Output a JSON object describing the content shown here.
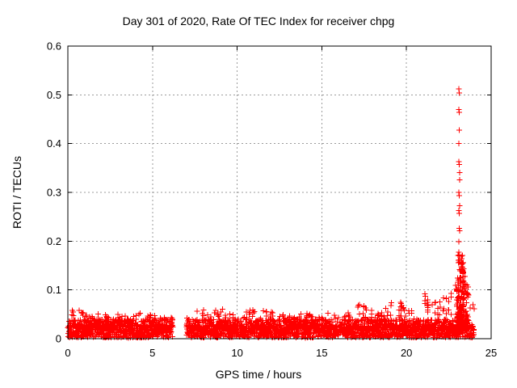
{
  "chart_data": {
    "type": "scatter",
    "title": "Day 301 of 2020, Rate Of TEC Index for receiver chpg",
    "xlabel": "GPS time / hours",
    "ylabel": "ROTI / TECUs",
    "xlim": [
      0,
      25
    ],
    "ylim": [
      0,
      0.6
    ],
    "x_ticks": [
      "0",
      "5",
      "10",
      "15",
      "20",
      "25"
    ],
    "x_tick_values": [
      0,
      5,
      10,
      15,
      20,
      25
    ],
    "y_ticks": [
      "0",
      "0.1",
      "0.2",
      "0.3",
      "0.4",
      "0.5",
      "0.6"
    ],
    "y_tick_values": [
      0,
      0.1,
      0.2,
      0.3,
      0.4,
      0.5,
      0.6
    ],
    "grid": {
      "visible": true,
      "style": "dashed",
      "color": "#9b9b9b"
    },
    "legend": "none",
    "marker": "plus",
    "marker_color": "#ff0000",
    "frame_color": "#000000",
    "background": "#ffffff",
    "series_description": "Dense ROTI noise band mostly 0 to 0.05 TECU across the day; data gap between 6.2 h and 7.0 h; activity grows after 17 h; strong scintillation spike near 23.1 h reaching 0.51 TECU",
    "noise_band": {
      "seed": 301,
      "points_per_hour": 115,
      "segments": [
        {
          "from": 0.0,
          "to": 6.2
        },
        {
          "from": 7.0,
          "to": 24.0
        }
      ],
      "typical_range": [
        0,
        0.05
      ],
      "envelope": [
        [
          0,
          0.058
        ],
        [
          0.5,
          0.062
        ],
        [
          1.0,
          0.056
        ],
        [
          1.7,
          0.052
        ],
        [
          2.4,
          0.048
        ],
        [
          3.1,
          0.05
        ],
        [
          3.8,
          0.046
        ],
        [
          4.4,
          0.056
        ],
        [
          5.0,
          0.05
        ],
        [
          5.6,
          0.05
        ],
        [
          6.2,
          0.042
        ],
        [
          7.0,
          0.046
        ],
        [
          7.6,
          0.058
        ],
        [
          8.1,
          0.066
        ],
        [
          8.7,
          0.06
        ],
        [
          9.3,
          0.064
        ],
        [
          10.0,
          0.052
        ],
        [
          10.8,
          0.06
        ],
        [
          11.4,
          0.066
        ],
        [
          12.0,
          0.058
        ],
        [
          12.6,
          0.05
        ],
        [
          13.3,
          0.048
        ],
        [
          14.0,
          0.052
        ],
        [
          14.7,
          0.05
        ],
        [
          15.3,
          0.058
        ],
        [
          16.0,
          0.052
        ],
        [
          16.7,
          0.056
        ],
        [
          17.4,
          0.076
        ],
        [
          18.0,
          0.06
        ],
        [
          18.7,
          0.066
        ],
        [
          19.3,
          0.088
        ],
        [
          19.8,
          0.072
        ],
        [
          20.4,
          0.066
        ],
        [
          21.0,
          0.094
        ],
        [
          21.6,
          0.08
        ],
        [
          22.2,
          0.086
        ],
        [
          22.7,
          0.095
        ],
        [
          23.0,
          0.12
        ],
        [
          23.2,
          0.16
        ],
        [
          23.5,
          0.13
        ],
        [
          23.8,
          0.105
        ],
        [
          24.0,
          0.07
        ]
      ]
    },
    "spike_clusters": [
      {
        "x_range": [
          22.95,
          23.38
        ],
        "y_range": [
          0.02,
          0.175
        ],
        "count": 150
      },
      {
        "x_range": [
          23.35,
          23.65
        ],
        "y_range": [
          0.02,
          0.115
        ],
        "count": 60
      }
    ],
    "outliers": [
      [
        23.09,
        0.512
      ],
      [
        23.11,
        0.504
      ],
      [
        23.1,
        0.47
      ],
      [
        23.12,
        0.464
      ],
      [
        23.11,
        0.428
      ],
      [
        23.1,
        0.4
      ],
      [
        23.09,
        0.363
      ],
      [
        23.12,
        0.357
      ],
      [
        23.13,
        0.341
      ],
      [
        23.13,
        0.326
      ],
      [
        23.1,
        0.3
      ],
      [
        23.12,
        0.293
      ],
      [
        23.13,
        0.273
      ],
      [
        23.09,
        0.263
      ],
      [
        23.12,
        0.257
      ],
      [
        23.11,
        0.226
      ],
      [
        23.15,
        0.221
      ],
      [
        23.1,
        0.199
      ],
      [
        23.09,
        0.177
      ],
      [
        23.11,
        0.17
      ],
      [
        23.3,
        0.155
      ],
      [
        23.28,
        0.142
      ],
      [
        23.32,
        0.134
      ],
      [
        23.38,
        0.118
      ],
      [
        23.45,
        0.128
      ],
      [
        23.48,
        0.112
      ],
      [
        23.42,
        0.104
      ],
      [
        23.52,
        0.094
      ]
    ]
  }
}
